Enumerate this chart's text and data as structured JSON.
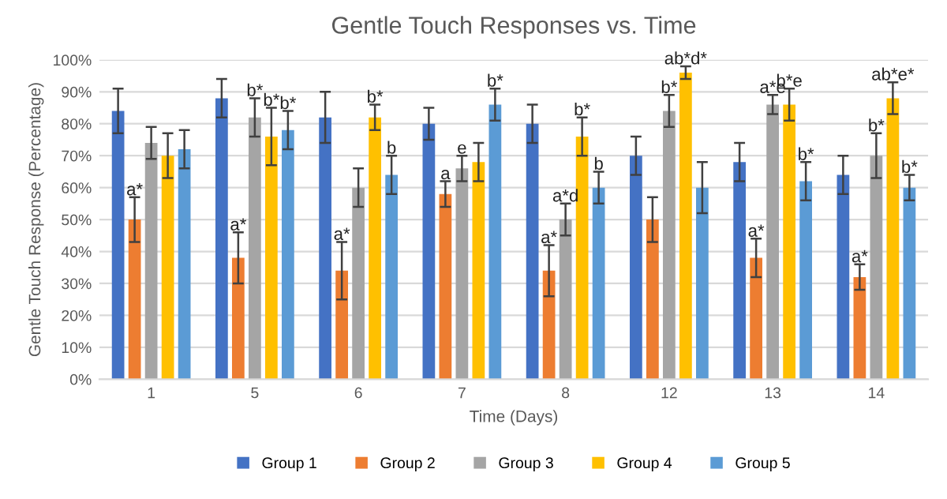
{
  "chart_data": {
    "type": "bar",
    "title": "Gentle Touch Responses vs. Time",
    "xlabel": "Time (Days)",
    "ylabel": "Gentle Touch Response (Percentage)",
    "categories": [
      "1",
      "5",
      "6",
      "7",
      "8",
      "12",
      "13",
      "14"
    ],
    "series": [
      {
        "name": "Group 1",
        "color": "#4472c4",
        "values": [
          84,
          88,
          82,
          80,
          80,
          70,
          68,
          64
        ],
        "errors": [
          7,
          6,
          8,
          5,
          6,
          6,
          6,
          6
        ]
      },
      {
        "name": "Group 2",
        "color": "#ed7d31",
        "values": [
          50,
          38,
          34,
          58,
          34,
          50,
          38,
          32
        ],
        "errors": [
          7,
          8,
          9,
          4,
          8,
          7,
          6,
          4
        ],
        "value_labels": [
          "a*",
          "a*",
          "a*",
          "a",
          "a*",
          null,
          "a*",
          "a*"
        ]
      },
      {
        "name": "Group 3",
        "color": "#a5a5a5",
        "values": [
          74,
          82,
          60,
          66,
          50,
          84,
          86,
          70
        ],
        "errors": [
          5,
          6,
          6,
          4,
          5,
          5,
          3,
          7
        ],
        "value_labels": [
          null,
          "b*",
          null,
          "e",
          "a*d",
          "b*",
          "a*e",
          "b*"
        ]
      },
      {
        "name": "Group 4",
        "color": "#ffc000",
        "values": [
          70,
          76,
          82,
          68,
          76,
          96,
          86,
          88
        ],
        "errors": [
          7,
          9,
          4,
          6,
          6,
          2,
          5,
          5
        ],
        "value_labels": [
          null,
          "b*",
          "b*",
          null,
          "b*",
          "ab*d*",
          "b*e",
          "ab*e*"
        ]
      },
      {
        "name": "Group 5",
        "color": "#5b9bd5",
        "values": [
          72,
          78,
          64,
          86,
          60,
          60,
          62,
          60
        ],
        "errors": [
          6,
          6,
          6,
          5,
          5,
          8,
          6,
          4
        ],
        "value_labels": [
          null,
          "b*",
          "b",
          "b*",
          "b",
          null,
          "b*",
          "b*"
        ]
      }
    ],
    "ylim": [
      0,
      100
    ],
    "yticks": [
      {
        "value": 0,
        "label": "0%"
      },
      {
        "value": 10,
        "label": "10%"
      },
      {
        "value": 20,
        "label": "20%"
      },
      {
        "value": 30,
        "label": "30%"
      },
      {
        "value": 40,
        "label": "40%"
      },
      {
        "value": 50,
        "label": "50%"
      },
      {
        "value": 60,
        "label": "60%"
      },
      {
        "value": 70,
        "label": "70%"
      },
      {
        "value": 80,
        "label": "80%"
      },
      {
        "value": 90,
        "label": "90%"
      },
      {
        "value": 100,
        "label": "100%"
      }
    ],
    "grid": "y",
    "legend": "bottom"
  }
}
